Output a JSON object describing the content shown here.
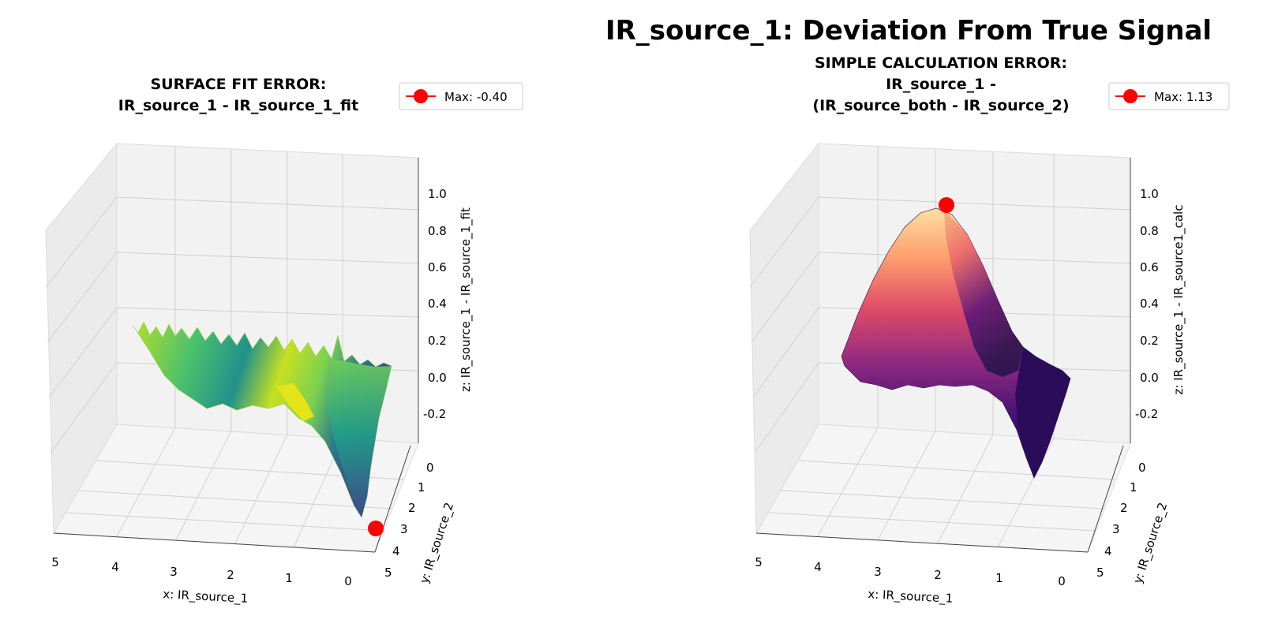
{
  "figure": {
    "suptitle": "IR_source_1: Deviation From True Signal"
  },
  "chart_data": [
    {
      "type": "surface3d",
      "title_lines": [
        "SURFACE FIT ERROR:",
        "IR_source_1 - IR_source_1_fit"
      ],
      "xlabel": "x: IR_source_1",
      "ylabel": "y: IR_source_2",
      "zlabel": "z: IR_source_1 - IR_source_1_fit",
      "x_ticks": [
        "5",
        "4",
        "3",
        "2",
        "1",
        "0"
      ],
      "y_ticks": [
        "0",
        "1",
        "2",
        "3",
        "4",
        "5"
      ],
      "z_ticks": [
        "1.0",
        "0.8",
        "0.6",
        "0.4",
        "0.2",
        "0.0",
        "-0.2"
      ],
      "xlim": [
        0,
        5
      ],
      "ylim": [
        0,
        5
      ],
      "zlim": [
        -0.4,
        1.13
      ],
      "colormap": "viridis",
      "colors": [
        "#440154",
        "#3b528b",
        "#21918c",
        "#5ec962",
        "#fde725"
      ],
      "surface_profile": {
        "x": [
          5.0,
          4.5,
          4.0,
          3.5,
          3.0,
          2.5,
          2.0,
          1.5,
          1.0,
          0.5,
          0.0
        ],
        "z_front_y5": [
          0.15,
          0.1,
          0.05,
          0.0,
          -0.02,
          -0.02,
          -0.05,
          -0.1,
          -0.25,
          -0.35,
          -0.2
        ],
        "z_back_y0": [
          0.2,
          0.18,
          0.15,
          0.15,
          0.12,
          0.1,
          0.1,
          0.1,
          0.12,
          0.12,
          0.1
        ]
      },
      "max_point": {
        "x": 0.1,
        "y": 2.0,
        "z": -0.4
      },
      "legend": {
        "label": "Max: -0.40",
        "marker_color": "#ff0000",
        "placement": "upper-right"
      }
    },
    {
      "type": "surface3d",
      "title_lines": [
        "SIMPLE CALCULATION ERROR:",
        "IR_source_1 -",
        "(IR_source_both - IR_source_2)"
      ],
      "xlabel": "x: IR_source_1",
      "ylabel": "y: IR_source_2",
      "zlabel": "z: IR_source_1 - IR_source1_calc",
      "x_ticks": [
        "5",
        "4",
        "3",
        "2",
        "1",
        "0"
      ],
      "y_ticks": [
        "0",
        "1",
        "2",
        "3",
        "4",
        "5"
      ],
      "z_ticks": [
        "1.0",
        "0.8",
        "0.6",
        "0.4",
        "0.2",
        "0.0",
        "-0.2"
      ],
      "xlim": [
        0,
        5
      ],
      "ylim": [
        0,
        5
      ],
      "zlim": [
        -0.4,
        1.13
      ],
      "colormap": "magma",
      "colors": [
        "#000004",
        "#3b0f70",
        "#8c2981",
        "#de4968",
        "#fe9f6d",
        "#fcfdbf"
      ],
      "surface_profile": {
        "x": [
          5.0,
          4.5,
          4.0,
          3.5,
          3.0,
          2.5,
          2.0,
          1.5,
          1.0,
          0.5,
          0.0
        ],
        "z_ridge_y2": [
          0.05,
          0.3,
          0.6,
          0.9,
          1.05,
          1.12,
          1.05,
          0.75,
          0.3,
          0.0,
          -0.3
        ],
        "z_back_y0": [
          0.05,
          0.05,
          0.05,
          0.05,
          0.05,
          0.05,
          0.05,
          0.05,
          0.05,
          0.0,
          0.0
        ]
      },
      "max_point": {
        "x": 2.0,
        "y": 2.0,
        "z": 1.13
      },
      "legend": {
        "label": "Max: 1.13",
        "marker_color": "#ff0000",
        "placement": "upper-right"
      }
    }
  ]
}
